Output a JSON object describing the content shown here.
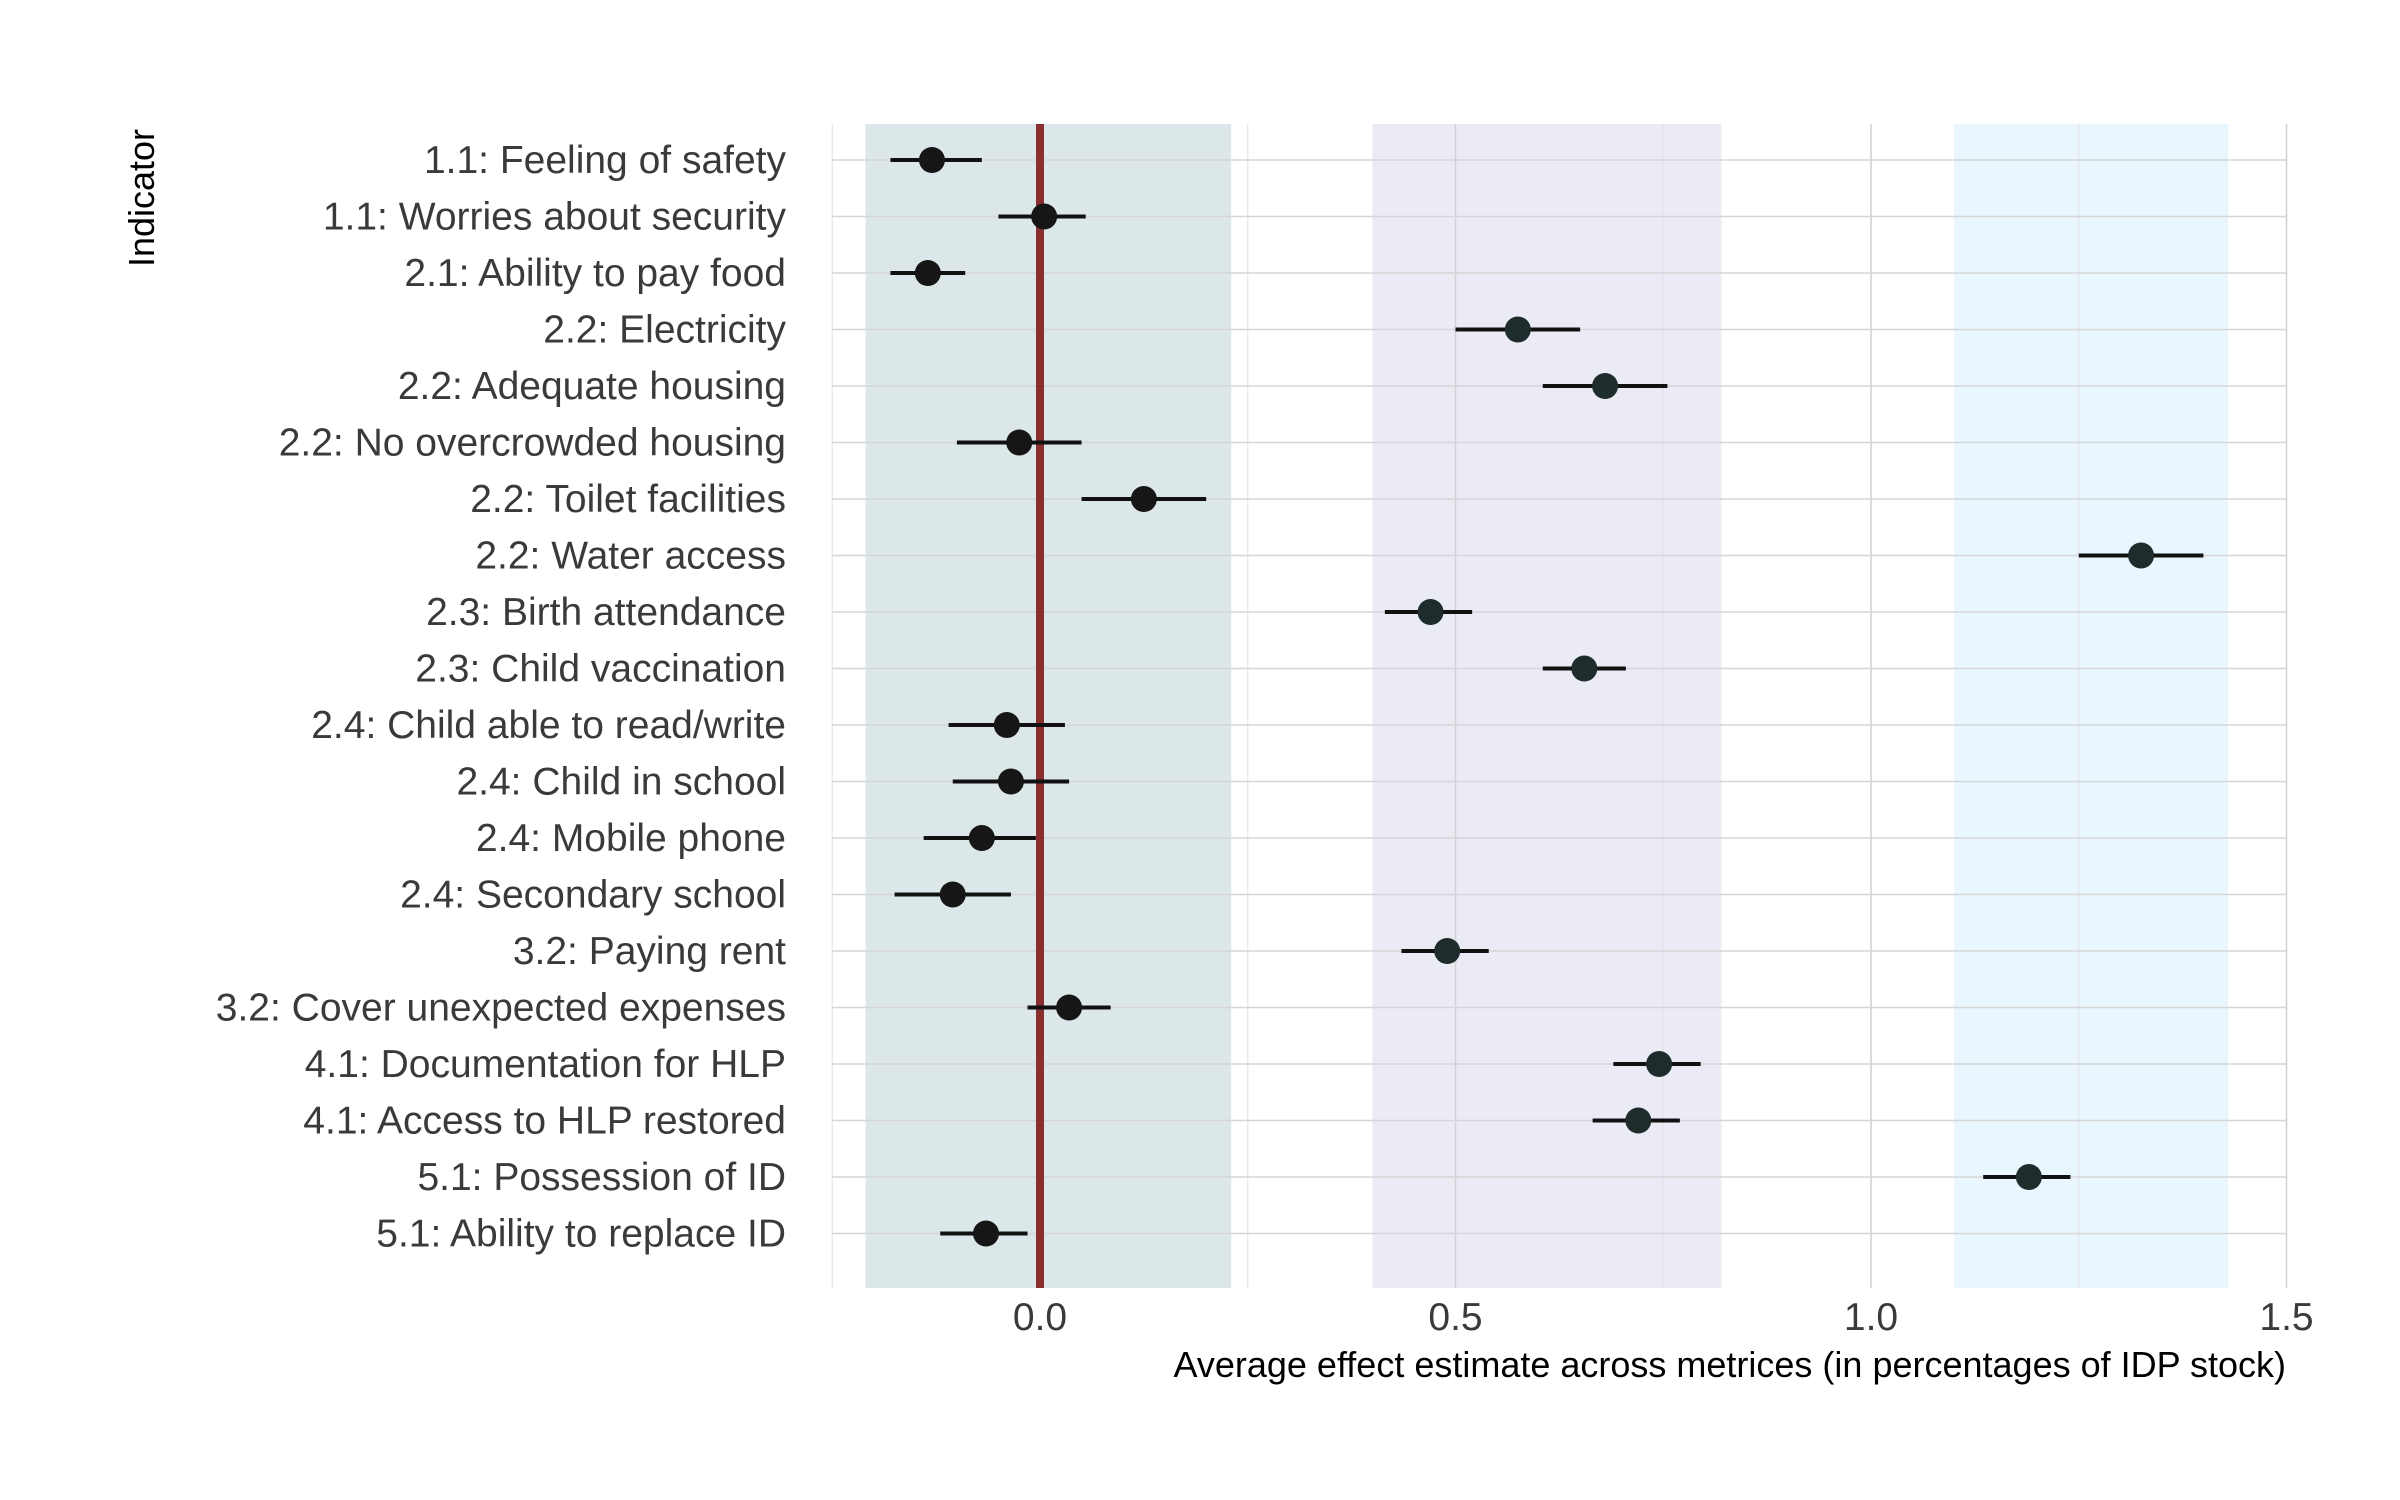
{
  "chart_data": {
    "type": "scatter",
    "xlabel": "Average effect estimate across metrices (in percentages of IDP stock)",
    "ylabel": "Indicator",
    "xlim": [
      -0.25,
      1.52
    ],
    "x_ticks": [
      {
        "value": 0.0,
        "label": "0.0"
      },
      {
        "value": 0.5,
        "label": "0.5"
      },
      {
        "value": 1.0,
        "label": "1.0"
      },
      {
        "value": 1.5,
        "label": "1.5"
      }
    ],
    "grid": true,
    "reference_line": {
      "x": 0.0,
      "color": "#8b2e2e"
    },
    "shaded_bands": [
      {
        "from": -0.21,
        "to": 0.23,
        "color": "#dbe7e8"
      },
      {
        "from": 0.4,
        "to": 0.82,
        "color": "#ebebf6"
      },
      {
        "from": 1.1,
        "to": 1.43,
        "color": "#e9f6fd"
      }
    ],
    "point_color": "#161616",
    "point_color_alt": "#1e2c2c",
    "points": [
      {
        "label": "1.1: Feeling of safety",
        "estimate": -0.13,
        "low": -0.18,
        "high": -0.07
      },
      {
        "label": "1.1: Worries about security",
        "estimate": 0.005,
        "low": -0.05,
        "high": 0.055
      },
      {
        "label": "2.1: Ability to pay food",
        "estimate": -0.135,
        "low": -0.18,
        "high": -0.09
      },
      {
        "label": "2.2: Electricity",
        "estimate": 0.575,
        "low": 0.5,
        "high": 0.65
      },
      {
        "label": "2.2: Adequate housing",
        "estimate": 0.68,
        "low": 0.605,
        "high": 0.755
      },
      {
        "label": "2.2: No overcrowded housing",
        "estimate": -0.025,
        "low": -0.1,
        "high": 0.05
      },
      {
        "label": "2.2: Toilet facilities",
        "estimate": 0.125,
        "low": 0.05,
        "high": 0.2
      },
      {
        "label": "2.2: Water access",
        "estimate": 1.325,
        "low": 1.25,
        "high": 1.4
      },
      {
        "label": "2.3: Birth attendance",
        "estimate": 0.47,
        "low": 0.415,
        "high": 0.52
      },
      {
        "label": "2.3: Child vaccination",
        "estimate": 0.655,
        "low": 0.605,
        "high": 0.705
      },
      {
        "label": "2.4: Child able to read/write",
        "estimate": -0.04,
        "low": -0.11,
        "high": 0.03
      },
      {
        "label": "2.4: Child in school",
        "estimate": -0.035,
        "low": -0.105,
        "high": 0.035
      },
      {
        "label": "2.4: Mobile phone",
        "estimate": -0.07,
        "low": -0.14,
        "high": -0.005
      },
      {
        "label": "2.4: Secondary school",
        "estimate": -0.105,
        "low": -0.175,
        "high": -0.035
      },
      {
        "label": "3.2: Paying rent",
        "estimate": 0.49,
        "low": 0.435,
        "high": 0.54
      },
      {
        "label": "3.2: Cover unexpected expenses",
        "estimate": 0.035,
        "low": -0.015,
        "high": 0.085
      },
      {
        "label": "4.1: Documentation for HLP",
        "estimate": 0.745,
        "low": 0.69,
        "high": 0.795
      },
      {
        "label": "4.1: Access to HLP restored",
        "estimate": 0.72,
        "low": 0.665,
        "high": 0.77
      },
      {
        "label": "5.1: Possession of ID",
        "estimate": 1.19,
        "low": 1.135,
        "high": 1.24
      },
      {
        "label": "5.1: Ability to replace ID",
        "estimate": -0.065,
        "low": -0.12,
        "high": -0.015
      }
    ]
  }
}
